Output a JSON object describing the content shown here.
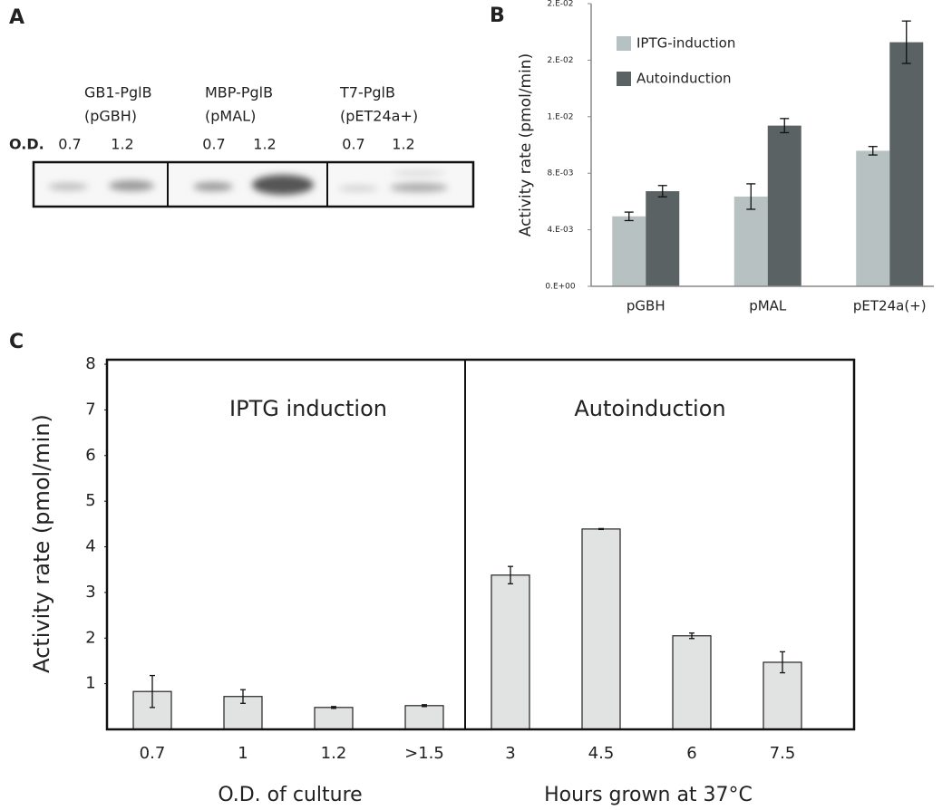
{
  "gel": {
    "panel_label": "A",
    "od_label": "O.D.",
    "lanes": [
      {
        "name": "GB1-PglB",
        "plasmid": "(pGBH)",
        "ods": [
          "0.7",
          "1.2"
        ]
      },
      {
        "name": "MBP-PglB",
        "plasmid": "(pMAL)",
        "ods": [
          "0.7",
          "1.2"
        ]
      },
      {
        "name": "T7-PglB",
        "plasmid": "(pET24a+)",
        "ods": [
          "0.7",
          "1.2"
        ]
      }
    ]
  },
  "chart_data": [
    {
      "type": "grouped-bar",
      "panel_label": "B",
      "y_label": "Activity rate (pmol/min)",
      "categories": [
        "pGBH",
        "pMAL",
        "pET24a(+)"
      ],
      "series": [
        {
          "name": "IPTG-induction",
          "color": "#b8c1c1",
          "values": [
            0.00495,
            0.00635,
            0.00959
          ],
          "errors": [
            0.0003,
            0.0009,
            0.0003
          ]
        },
        {
          "name": "Autoinduction",
          "color": "#5a6264",
          "values": [
            0.00673,
            0.01137,
            0.01727
          ],
          "errors": [
            0.0004,
            0.0005,
            0.0015
          ]
        }
      ],
      "ylim": [
        0,
        0.02
      ],
      "yticks": [
        {
          "value": 0,
          "label": "0.E+00"
        },
        {
          "value": 0.004,
          "label": "4.E-03"
        },
        {
          "value": 0.008,
          "label": "8.E-03"
        },
        {
          "value": 0.012,
          "label": "1.E-02"
        },
        {
          "value": 0.016,
          "label": "2.E-02"
        },
        {
          "value": 0.02,
          "label": "2.E-02"
        }
      ],
      "legend": "upper-left"
    },
    {
      "type": "bar",
      "panel_label": "C",
      "y_label": "Activity rate (pmol/min)",
      "color": "#e1e3e3",
      "ylim": [
        0,
        8.1
      ],
      "yticks": [
        1,
        2,
        3,
        4,
        5,
        6,
        7,
        8
      ],
      "groups": [
        {
          "title": "IPTG induction",
          "x_label": "O.D. of culture",
          "categories": [
            "0.7",
            "1",
            "1.2",
            ">1.5"
          ],
          "values": [
            0.83,
            0.72,
            0.48,
            0.52
          ],
          "errors": [
            0.35,
            0.15,
            0.02,
            0.02
          ]
        },
        {
          "title": "Autoinduction",
          "x_label": "Hours grown at 37°C",
          "categories": [
            "3",
            "4.5",
            "6",
            "7.5"
          ],
          "values": [
            3.38,
            4.39,
            2.05,
            1.47
          ],
          "errors": [
            0.19,
            0.01,
            0.06,
            0.23
          ]
        }
      ]
    }
  ]
}
